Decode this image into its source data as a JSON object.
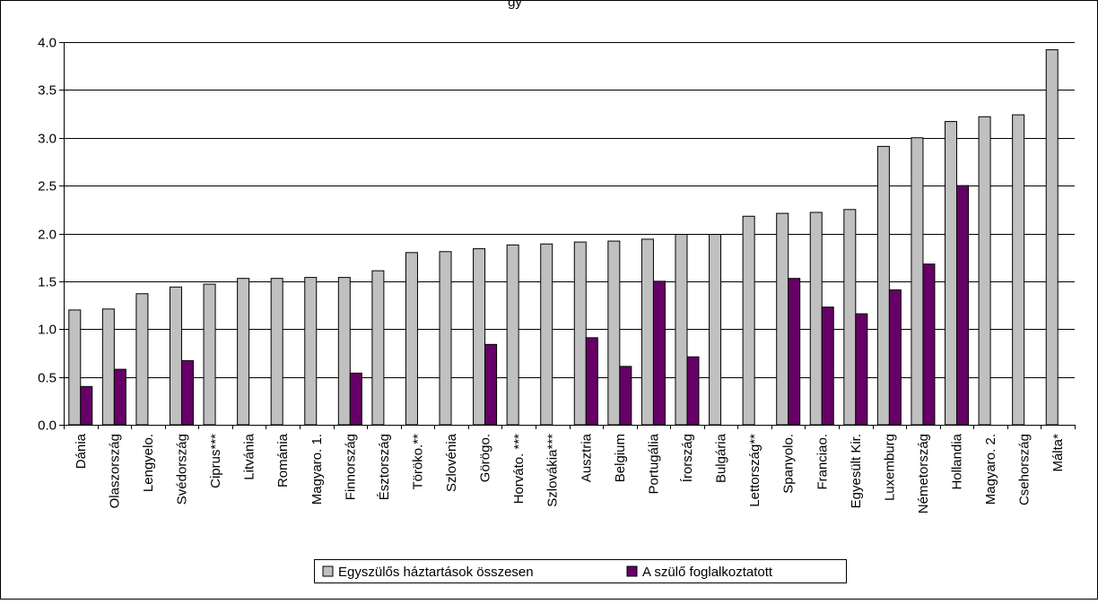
{
  "chart_data": {
    "type": "bar",
    "title": "",
    "xlabel": "",
    "ylabel": "",
    "ylim": [
      0,
      4
    ],
    "yticks": [
      "0.0",
      "0.5",
      "1.0",
      "1.5",
      "2.0",
      "2.5",
      "3.0",
      "3.5",
      "4.0"
    ],
    "grid": "horizontal",
    "legend_position": "bottom",
    "categories": [
      "Dánia",
      "Olaszország",
      "Lengyelo.",
      "Svédország",
      "Ciprus***",
      "Litvánia",
      "Románia",
      "Magyaro. 1.",
      "Finnország",
      "Észtország",
      "Töröko.**",
      "Szlovénia",
      "Görögo.",
      "Horváto. ***",
      "Szlovákia***",
      "Ausztria",
      "Belgium",
      "Portugália",
      "Írország",
      "Bulgária",
      "Lettország**",
      "Spanyolo.",
      "Franciao.",
      "Egyesült Kir.",
      "Luxemburg",
      "Németország",
      "Hollandia",
      "Magyaro. 2.",
      "Csehország",
      "Málta*"
    ],
    "series": [
      {
        "name": "Egyszülős háztartások összesen",
        "color": "#c0c0c0",
        "values": [
          1.2,
          1.21,
          1.37,
          1.44,
          1.47,
          1.53,
          1.53,
          1.54,
          1.54,
          1.61,
          1.8,
          1.81,
          1.84,
          1.88,
          1.89,
          1.91,
          1.92,
          1.94,
          1.99,
          1.99,
          2.18,
          2.21,
          2.22,
          2.25,
          2.91,
          3.0,
          3.17,
          3.22,
          3.24,
          3.92
        ]
      },
      {
        "name": "A szülő foglalkoztatott",
        "color": "#660066",
        "values": [
          0.4,
          0.58,
          null,
          0.67,
          null,
          null,
          null,
          null,
          0.54,
          null,
          null,
          null,
          0.84,
          null,
          null,
          0.91,
          0.61,
          1.5,
          0.71,
          null,
          null,
          1.53,
          1.23,
          1.16,
          1.41,
          1.68,
          2.5,
          null,
          null,
          null
        ]
      }
    ]
  },
  "header": {
    "title_fragment": "gy"
  }
}
